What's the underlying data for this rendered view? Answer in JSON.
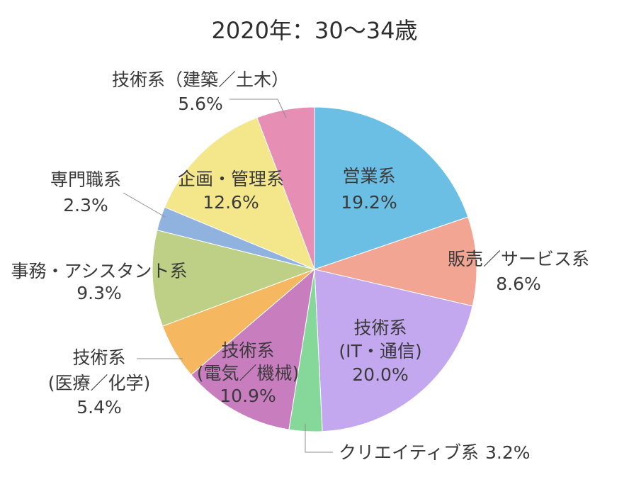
{
  "chart_data": {
    "type": "pie",
    "title": "2020年：30〜34歳",
    "unit": "%",
    "direction": "clockwise from top",
    "slices": [
      {
        "label": [
          "営業系"
        ],
        "value": 19.2,
        "color": "#6bbee4"
      },
      {
        "label": [
          "販売／サービス系"
        ],
        "value": 8.6,
        "color": "#f2a593"
      },
      {
        "label": [
          "技術系",
          "(IT・通信)"
        ],
        "value": 20.0,
        "color": "#c3a8ef"
      },
      {
        "label": [
          "クリエイティブ系"
        ],
        "value": 3.2,
        "color": "#86d79a"
      },
      {
        "label": [
          "技術系",
          "(電気／機械)"
        ],
        "value": 10.9,
        "color": "#c87dbf"
      },
      {
        "label": [
          "技術系",
          "(医療／化学)"
        ],
        "value": 5.4,
        "color": "#f5b75f"
      },
      {
        "label": [
          "事務・アシスタント系"
        ],
        "value": 9.3,
        "color": "#bdd085"
      },
      {
        "label": [
          "専門職系"
        ],
        "value": 2.3,
        "color": "#8fb3de"
      },
      {
        "label": [
          "企画・管理系"
        ],
        "value": 12.6,
        "color": "#f3e68b"
      },
      {
        "label": [
          "技術系（建築／土木）"
        ],
        "value": 5.6,
        "color": "#e68eb3"
      }
    ]
  }
}
